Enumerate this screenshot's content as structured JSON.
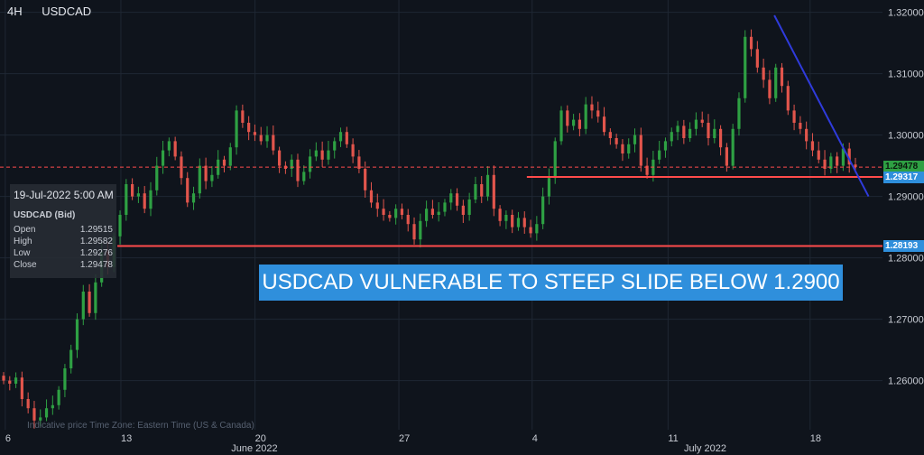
{
  "header": {
    "timeframe": "4H",
    "symbol": "USDCAD"
  },
  "infobox": {
    "datetime": "19-Jul-2022 5:00 AM",
    "symbol": "USDCAD (Bid)",
    "rows": [
      {
        "label": "Open",
        "value": "1.29515"
      },
      {
        "label": "High",
        "value": "1.29582"
      },
      {
        "label": "Low",
        "value": "1.29276"
      },
      {
        "label": "Close",
        "value": "1.29478"
      }
    ]
  },
  "banner": "USDCAD VULNERABLE TO STEEP SLIDE BELOW 1.2900",
  "footer_note": "Indicative price Time Zone: Eastern Time (US & Canada)",
  "price_tags": {
    "current": "1.29478",
    "support_upper": "1.29317",
    "support_lower": "1.28193"
  },
  "colors": {
    "background": "#0f141c",
    "up": "#2ea043",
    "down": "#e2554c",
    "level": "#ff4b4b",
    "trend": "#2f3bdc",
    "banner": "#2f8fdc"
  },
  "chart_data": {
    "type": "candlestick",
    "symbol": "USDCAD",
    "timeframe": "4H",
    "ylim": [
      1.252,
      1.322
    ],
    "y_ticks": [
      "1.32000",
      "1.31000",
      "1.30000",
      "1.29000",
      "1.28000",
      "1.27000",
      "1.26000"
    ],
    "x_ticks": [
      "6",
      "13",
      "20",
      "27",
      "4",
      "11",
      "18"
    ],
    "month_labels": [
      "June 2022",
      "July 2022"
    ],
    "levels": [
      {
        "name": "support_upper",
        "value": 1.29317
      },
      {
        "name": "support_lower",
        "value": 1.28193
      },
      {
        "name": "current",
        "value": 1.29478,
        "style": "dashed"
      }
    ],
    "trendline": {
      "from": [
        0.838,
        1.3195
      ],
      "to": [
        0.94,
        1.29
      ]
    },
    "closes": [
      1.26,
      1.2595,
      1.2605,
      1.257,
      1.2555,
      1.2535,
      1.254,
      1.2555,
      1.256,
      1.2585,
      1.262,
      1.265,
      1.27,
      1.2745,
      1.271,
      1.276,
      1.281,
      1.2785,
      1.2835,
      1.287,
      1.292,
      1.29,
      1.2905,
      1.288,
      1.291,
      1.295,
      1.2975,
      1.299,
      1.2965,
      1.293,
      1.289,
      1.2905,
      1.295,
      1.2925,
      1.2935,
      1.296,
      1.295,
      1.298,
      1.304,
      1.302,
      1.3005,
      1.3,
      1.299,
      1.3,
      1.2975,
      1.295,
      1.2945,
      1.296,
      1.2925,
      1.294,
      1.2965,
      1.2975,
      1.296,
      1.2975,
      1.299,
      1.3005,
      1.2985,
      1.2965,
      1.2945,
      1.291,
      1.289,
      1.288,
      1.287,
      1.2865,
      1.288,
      1.287,
      1.2855,
      1.283,
      1.286,
      1.288,
      1.287,
      1.2875,
      1.289,
      1.2905,
      1.2885,
      1.287,
      1.2895,
      1.292,
      1.29,
      1.2935,
      1.288,
      1.286,
      1.287,
      1.285,
      1.2865,
      1.285,
      1.284,
      1.2855,
      1.29,
      1.293,
      1.299,
      1.304,
      1.3015,
      1.3025,
      1.301,
      1.305,
      1.304,
      1.303,
      1.3005,
      1.2995,
      1.2985,
      1.297,
      1.2985,
      1.3,
      1.295,
      1.2935,
      1.296,
      1.2975,
      1.299,
      1.3005,
      1.3015,
      1.2995,
      1.301,
      1.3025,
      1.302,
      1.2995,
      1.301,
      1.298,
      1.295,
      1.301,
      1.306,
      1.316,
      1.314,
      1.311,
      1.309,
      1.306,
      1.311,
      1.308,
      1.304,
      1.302,
      1.301,
      1.299,
      1.2975,
      1.296,
      1.2945,
      1.2965,
      1.295,
      1.2978,
      1.2952,
      1.2948
    ]
  }
}
